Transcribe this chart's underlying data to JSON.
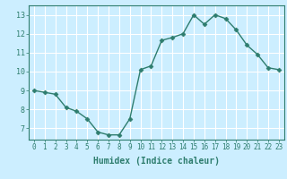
{
  "x": [
    0,
    1,
    2,
    3,
    4,
    5,
    6,
    7,
    8,
    9,
    10,
    11,
    12,
    13,
    14,
    15,
    16,
    17,
    18,
    19,
    20,
    21,
    22,
    23
  ],
  "y": [
    9.0,
    8.9,
    8.8,
    8.1,
    7.9,
    7.5,
    6.8,
    6.65,
    6.65,
    7.5,
    10.1,
    10.3,
    11.65,
    11.8,
    12.0,
    13.0,
    12.5,
    13.0,
    12.8,
    12.2,
    11.4,
    10.9,
    10.2,
    10.1
  ],
  "line_color": "#2e7d6e",
  "marker": "D",
  "marker_size": 2.5,
  "bg_color": "#cceeff",
  "grid_color": "#ffffff",
  "xlabel": "Humidex (Indice chaleur)",
  "xlabel_color": "#2e7d6e",
  "tick_color": "#2e7d6e",
  "xlim": [
    -0.5,
    23.5
  ],
  "ylim": [
    6.4,
    13.5
  ],
  "yticks": [
    7,
    8,
    9,
    10,
    11,
    12,
    13
  ],
  "xticks": [
    0,
    1,
    2,
    3,
    4,
    5,
    6,
    7,
    8,
    9,
    10,
    11,
    12,
    13,
    14,
    15,
    16,
    17,
    18,
    19,
    20,
    21,
    22,
    23
  ],
  "tick_fontsize": 5.5,
  "xlabel_fontsize": 7.0,
  "linewidth": 1.0
}
